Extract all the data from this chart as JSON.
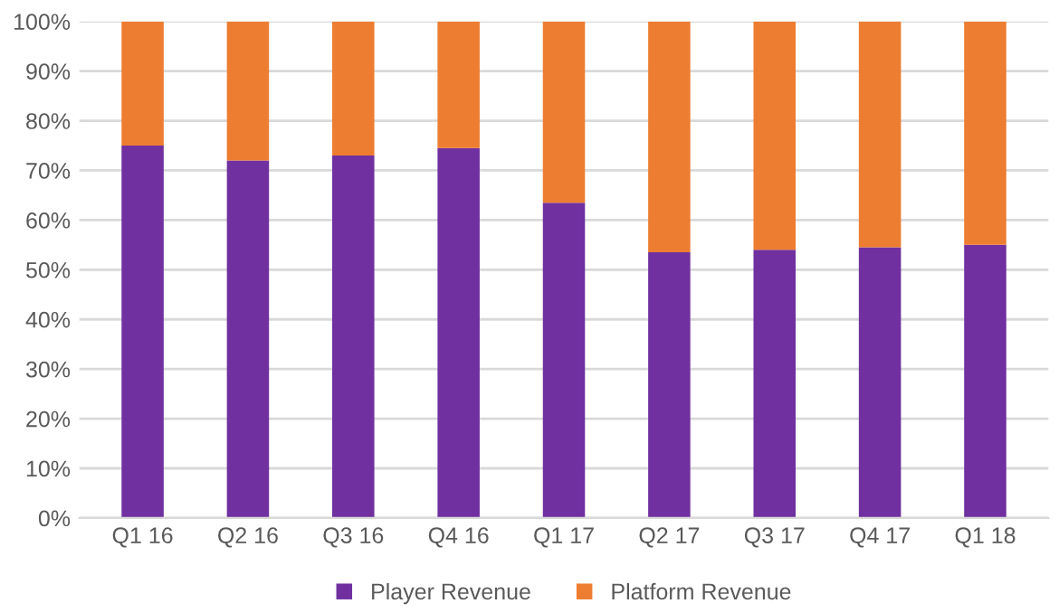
{
  "chart_data": {
    "type": "bar",
    "stacked": true,
    "categories": [
      "Q1 16",
      "Q2 16",
      "Q3 16",
      "Q4 16",
      "Q1 17",
      "Q2 17",
      "Q3 17",
      "Q4 17",
      "Q1 18"
    ],
    "series": [
      {
        "name": "Player Revenue",
        "color": "#7030a0",
        "values": [
          75,
          72,
          73,
          74.5,
          63.5,
          53.5,
          54,
          54.5,
          55
        ]
      },
      {
        "name": "Platform Revenue",
        "color": "#ed7d31",
        "values": [
          25,
          28,
          27,
          25.5,
          36.5,
          46.5,
          46,
          45.5,
          45
        ]
      }
    ],
    "ylim": [
      0,
      100
    ],
    "yticks": [
      {
        "value": 0,
        "label": "0%"
      },
      {
        "value": 10,
        "label": "10%"
      },
      {
        "value": 20,
        "label": "20%"
      },
      {
        "value": 30,
        "label": "30%"
      },
      {
        "value": 40,
        "label": "40%"
      },
      {
        "value": 50,
        "label": "50%"
      },
      {
        "value": 60,
        "label": "60%"
      },
      {
        "value": 70,
        "label": "70%"
      },
      {
        "value": 80,
        "label": "80%"
      },
      {
        "value": 90,
        "label": "90%"
      },
      {
        "value": 100,
        "label": "100%"
      }
    ],
    "grid": "y",
    "legend": "bottom"
  }
}
